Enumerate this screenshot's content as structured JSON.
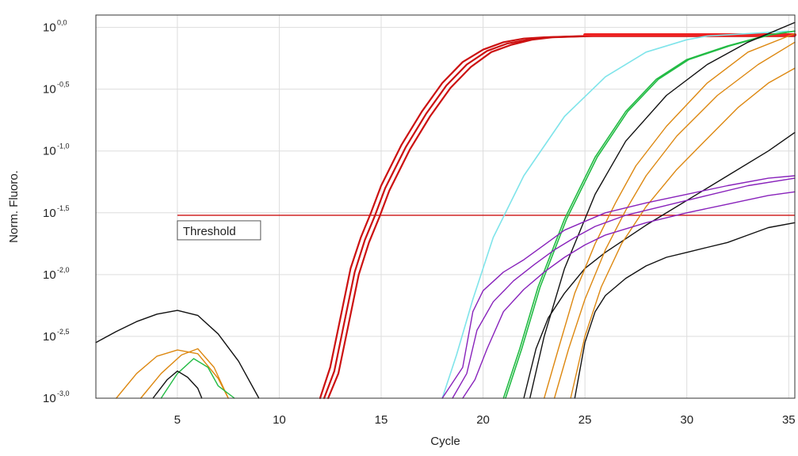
{
  "chart_data": {
    "type": "line",
    "title": "",
    "xlabel": "Cycle",
    "ylabel": "Norm. Fluoro.",
    "y_scale": "log10",
    "xlim": [
      1,
      35.3
    ],
    "ylim": [
      -3.0,
      0.1
    ],
    "x_ticks": [
      5,
      10,
      15,
      20,
      25,
      30,
      35
    ],
    "x_tick_labels": [
      "5",
      "10",
      "15",
      "20",
      "25",
      "30",
      "35"
    ],
    "y_ticks": [
      0.0,
      -0.5,
      -1.0,
      -1.5,
      -2.0,
      -2.5,
      -3.0
    ],
    "y_tick_base": "10",
    "y_tick_exponents": [
      "0,0",
      "-0,5",
      "-1,0",
      "-1,5",
      "-2,0",
      "-2,5",
      "-3,0"
    ],
    "grid": true,
    "legend": "none",
    "threshold": {
      "label": "Threshold",
      "y": -1.52,
      "x_start": 5,
      "x_end": 35.3,
      "color": "#cc1111"
    },
    "series": [
      {
        "color": "#cc1111",
        "width": 2.2,
        "points": [
          [
            12,
            -3.0
          ],
          [
            12.5,
            -2.75
          ],
          [
            13,
            -2.35
          ],
          [
            13.5,
            -1.95
          ],
          [
            14,
            -1.7
          ],
          [
            14.5,
            -1.5
          ],
          [
            15,
            -1.28
          ],
          [
            16,
            -0.95
          ],
          [
            17,
            -0.68
          ],
          [
            18,
            -0.45
          ],
          [
            19,
            -0.28
          ],
          [
            20,
            -0.18
          ],
          [
            21,
            -0.12
          ],
          [
            22,
            -0.09
          ],
          [
            23,
            -0.08
          ],
          [
            25,
            -0.07
          ],
          [
            35.3,
            -0.07
          ]
        ]
      },
      {
        "color": "#cc1111",
        "width": 2.2,
        "points": [
          [
            12.2,
            -3.0
          ],
          [
            12.7,
            -2.78
          ],
          [
            13.2,
            -2.38
          ],
          [
            13.7,
            -1.98
          ],
          [
            14.2,
            -1.72
          ],
          [
            14.7,
            -1.52
          ],
          [
            15.2,
            -1.3
          ],
          [
            16.2,
            -0.97
          ],
          [
            17.2,
            -0.7
          ],
          [
            18.2,
            -0.47
          ],
          [
            19.2,
            -0.3
          ],
          [
            20.2,
            -0.19
          ],
          [
            21.2,
            -0.13
          ],
          [
            22.2,
            -0.1
          ],
          [
            23.2,
            -0.08
          ],
          [
            25.2,
            -0.07
          ],
          [
            35.3,
            -0.07
          ]
        ]
      },
      {
        "color": "#cc1111",
        "width": 2.2,
        "points": [
          [
            12.4,
            -3.0
          ],
          [
            12.9,
            -2.8
          ],
          [
            13.4,
            -2.4
          ],
          [
            13.9,
            -2.0
          ],
          [
            14.4,
            -1.74
          ],
          [
            14.9,
            -1.54
          ],
          [
            15.4,
            -1.32
          ],
          [
            16.4,
            -0.99
          ],
          [
            17.4,
            -0.72
          ],
          [
            18.4,
            -0.49
          ],
          [
            19.4,
            -0.32
          ],
          [
            20.4,
            -0.2
          ],
          [
            21.4,
            -0.14
          ],
          [
            22.4,
            -0.1
          ],
          [
            23.4,
            -0.08
          ],
          [
            25.4,
            -0.07
          ],
          [
            35.3,
            -0.07
          ]
        ]
      },
      {
        "color": "#ee2222",
        "width": 4,
        "points": [
          [
            25,
            -0.06
          ],
          [
            35.3,
            -0.06
          ]
        ]
      },
      {
        "color": "#7fe4ea",
        "width": 1.6,
        "points": [
          [
            18,
            -3.0
          ],
          [
            18.7,
            -2.65
          ],
          [
            19.5,
            -2.2
          ],
          [
            20.5,
            -1.7
          ],
          [
            22,
            -1.2
          ],
          [
            24,
            -0.72
          ],
          [
            26,
            -0.4
          ],
          [
            28,
            -0.2
          ],
          [
            30,
            -0.1
          ],
          [
            31,
            -0.07
          ],
          [
            33,
            -0.05
          ],
          [
            35,
            -0.03
          ]
        ]
      },
      {
        "color": "#22bb44",
        "width": 1.6,
        "points": [
          [
            21,
            -3.0
          ],
          [
            21.8,
            -2.6
          ],
          [
            22.7,
            -2.1
          ],
          [
            24,
            -1.55
          ],
          [
            25.5,
            -1.05
          ],
          [
            27,
            -0.68
          ],
          [
            28.5,
            -0.42
          ],
          [
            30,
            -0.26
          ],
          [
            32,
            -0.15
          ],
          [
            34,
            -0.06
          ],
          [
            35.3,
            -0.03
          ]
        ]
      },
      {
        "color": "#22bb44",
        "width": 1.6,
        "points": [
          [
            21.1,
            -3.0
          ],
          [
            21.9,
            -2.6
          ],
          [
            22.8,
            -2.1
          ],
          [
            24.1,
            -1.55
          ],
          [
            25.6,
            -1.05
          ],
          [
            27.1,
            -0.68
          ],
          [
            28.6,
            -0.42
          ],
          [
            30.1,
            -0.26
          ],
          [
            32.1,
            -0.15
          ],
          [
            34.1,
            -0.06
          ],
          [
            35.3,
            -0.03
          ]
        ]
      },
      {
        "color": "#111111",
        "width": 1.4,
        "points": [
          [
            22.3,
            -3.0
          ],
          [
            23,
            -2.5
          ],
          [
            24,
            -1.95
          ],
          [
            25.5,
            -1.35
          ],
          [
            27,
            -0.92
          ],
          [
            29,
            -0.55
          ],
          [
            31,
            -0.3
          ],
          [
            33,
            -0.12
          ],
          [
            35.3,
            0.04
          ]
        ]
      },
      {
        "color": "#111111",
        "width": 1.4,
        "points": [
          [
            22,
            -3.0
          ],
          [
            22.6,
            -2.6
          ],
          [
            23.2,
            -2.35
          ],
          [
            24,
            -2.15
          ],
          [
            25,
            -1.95
          ],
          [
            26,
            -1.82
          ],
          [
            28,
            -1.6
          ],
          [
            30,
            -1.4
          ],
          [
            32,
            -1.2
          ],
          [
            34,
            -1.0
          ],
          [
            35.3,
            -0.85
          ]
        ]
      },
      {
        "color": "#111111",
        "width": 1.4,
        "points": [
          [
            24.5,
            -3.0
          ],
          [
            25,
            -2.55
          ],
          [
            25.5,
            -2.3
          ],
          [
            26,
            -2.17
          ],
          [
            27,
            -2.03
          ],
          [
            28,
            -1.93
          ],
          [
            29,
            -1.86
          ],
          [
            30,
            -1.82
          ],
          [
            31,
            -1.78
          ],
          [
            32,
            -1.74
          ],
          [
            33,
            -1.68
          ],
          [
            34,
            -1.62
          ],
          [
            35.3,
            -1.58
          ]
        ]
      },
      {
        "color": "#dd8811",
        "width": 1.4,
        "points": [
          [
            23,
            -3.0
          ],
          [
            23.7,
            -2.6
          ],
          [
            24.5,
            -2.15
          ],
          [
            25.5,
            -1.75
          ],
          [
            26.5,
            -1.42
          ],
          [
            27.5,
            -1.12
          ],
          [
            29,
            -0.8
          ],
          [
            31,
            -0.45
          ],
          [
            33,
            -0.2
          ],
          [
            35.3,
            -0.05
          ]
        ]
      },
      {
        "color": "#dd8811",
        "width": 1.4,
        "points": [
          [
            23.5,
            -3.0
          ],
          [
            24.2,
            -2.6
          ],
          [
            25,
            -2.2
          ],
          [
            26,
            -1.8
          ],
          [
            27,
            -1.48
          ],
          [
            28,
            -1.2
          ],
          [
            29.5,
            -0.88
          ],
          [
            31.5,
            -0.55
          ],
          [
            33.5,
            -0.3
          ],
          [
            35.3,
            -0.12
          ]
        ]
      },
      {
        "color": "#dd8811",
        "width": 1.4,
        "points": [
          [
            24.3,
            -3.0
          ],
          [
            25,
            -2.5
          ],
          [
            25.8,
            -2.1
          ],
          [
            26.8,
            -1.75
          ],
          [
            28,
            -1.45
          ],
          [
            29.5,
            -1.15
          ],
          [
            31,
            -0.9
          ],
          [
            32.5,
            -0.65
          ],
          [
            34,
            -0.45
          ],
          [
            35.3,
            -0.33
          ]
        ]
      },
      {
        "color": "#8822bb",
        "width": 1.4,
        "points": [
          [
            18,
            -3.0
          ],
          [
            19,
            -2.75
          ],
          [
            19.5,
            -2.3
          ],
          [
            20,
            -2.13
          ],
          [
            21,
            -1.98
          ],
          [
            22,
            -1.88
          ],
          [
            23,
            -1.76
          ],
          [
            24,
            -1.64
          ],
          [
            25,
            -1.57
          ],
          [
            26,
            -1.5
          ],
          [
            28,
            -1.42
          ],
          [
            30,
            -1.35
          ],
          [
            32,
            -1.28
          ],
          [
            34,
            -1.22
          ],
          [
            35.3,
            -1.2
          ]
        ]
      },
      {
        "color": "#8822bb",
        "width": 1.4,
        "points": [
          [
            18.5,
            -3.0
          ],
          [
            19.2,
            -2.8
          ],
          [
            19.7,
            -2.45
          ],
          [
            20.5,
            -2.22
          ],
          [
            21.5,
            -2.05
          ],
          [
            22.5,
            -1.92
          ],
          [
            23.5,
            -1.8
          ],
          [
            24.5,
            -1.7
          ],
          [
            25.5,
            -1.61
          ],
          [
            27,
            -1.52
          ],
          [
            29,
            -1.44
          ],
          [
            31,
            -1.36
          ],
          [
            33,
            -1.28
          ],
          [
            35.3,
            -1.22
          ]
        ]
      },
      {
        "color": "#8822bb",
        "width": 1.4,
        "points": [
          [
            19,
            -3.0
          ],
          [
            19.6,
            -2.85
          ],
          [
            20.2,
            -2.6
          ],
          [
            21,
            -2.3
          ],
          [
            22,
            -2.12
          ],
          [
            23,
            -1.98
          ],
          [
            24,
            -1.86
          ],
          [
            25,
            -1.76
          ],
          [
            26,
            -1.68
          ],
          [
            28,
            -1.58
          ],
          [
            30,
            -1.5
          ],
          [
            32,
            -1.43
          ],
          [
            34,
            -1.36
          ],
          [
            35.3,
            -1.33
          ]
        ]
      },
      {
        "color": "#111111",
        "width": 1.4,
        "points": [
          [
            1,
            -2.55
          ],
          [
            2,
            -2.46
          ],
          [
            3,
            -2.38
          ],
          [
            4,
            -2.32
          ],
          [
            5,
            -2.29
          ],
          [
            6,
            -2.33
          ],
          [
            7,
            -2.48
          ],
          [
            8,
            -2.7
          ],
          [
            9,
            -3.0
          ]
        ]
      },
      {
        "color": "#dd8811",
        "width": 1.4,
        "points": [
          [
            2,
            -3.0
          ],
          [
            3,
            -2.8
          ],
          [
            4,
            -2.66
          ],
          [
            5,
            -2.61
          ],
          [
            6,
            -2.64
          ],
          [
            7,
            -2.84
          ],
          [
            7.5,
            -3.0
          ]
        ]
      },
      {
        "color": "#dd8811",
        "width": 1.4,
        "points": [
          [
            3.2,
            -3.0
          ],
          [
            4.2,
            -2.8
          ],
          [
            5.2,
            -2.65
          ],
          [
            6,
            -2.6
          ],
          [
            6.8,
            -2.75
          ],
          [
            7.5,
            -3.0
          ]
        ]
      },
      {
        "color": "#22bb44",
        "width": 1.4,
        "points": [
          [
            4.2,
            -3.0
          ],
          [
            5,
            -2.8
          ],
          [
            5.8,
            -2.68
          ],
          [
            6.5,
            -2.75
          ],
          [
            7,
            -2.9
          ],
          [
            7.8,
            -3.0
          ]
        ]
      },
      {
        "color": "#111111",
        "width": 1.4,
        "points": [
          [
            3.8,
            -3.0
          ],
          [
            4.5,
            -2.85
          ],
          [
            5,
            -2.78
          ],
          [
            5.5,
            -2.83
          ],
          [
            6,
            -2.92
          ],
          [
            6.2,
            -3.0
          ]
        ]
      }
    ]
  }
}
